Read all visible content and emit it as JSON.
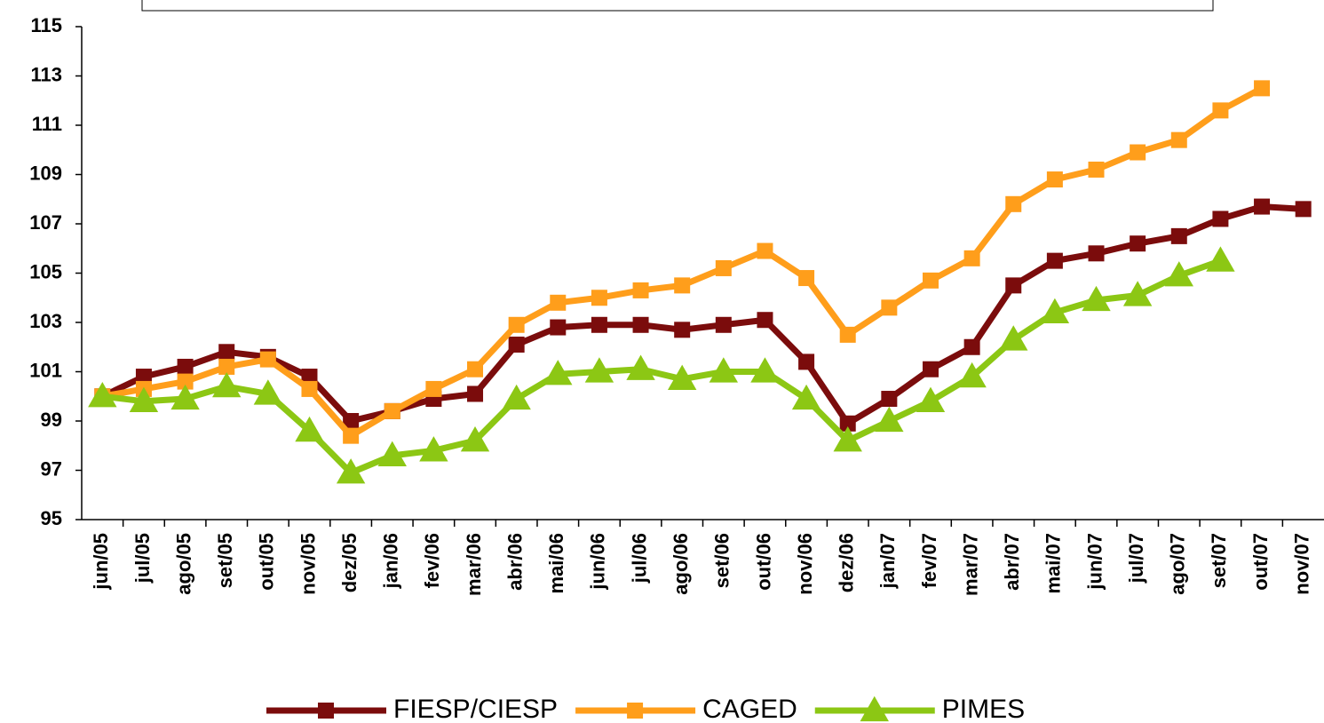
{
  "chart_data": {
    "type": "line",
    "categories": [
      "jun/05",
      "jul/05",
      "ago/05",
      "set/05",
      "out/05",
      "nov/05",
      "dez/05",
      "jan/06",
      "fev/06",
      "mar/06",
      "abr/06",
      "mai/06",
      "jun/06",
      "jul/06",
      "ago/06",
      "set/06",
      "out/06",
      "nov/06",
      "dez/06",
      "jan/07",
      "fev/07",
      "mar/07",
      "abr/07",
      "mai/07",
      "jun/07",
      "jul/07",
      "ago/07",
      "set/07",
      "out/07",
      "nov/07"
    ],
    "series": [
      {
        "name": "FIESP/CIESP",
        "color": "#7b0c0c",
        "marker": "square",
        "values": [
          100.0,
          100.8,
          101.2,
          101.8,
          101.6,
          100.8,
          99.0,
          99.4,
          99.9,
          100.1,
          102.1,
          102.8,
          102.9,
          102.9,
          102.7,
          102.9,
          103.1,
          101.4,
          98.9,
          99.9,
          101.1,
          102.0,
          104.5,
          105.5,
          105.8,
          106.2,
          106.5,
          107.2,
          107.7,
          107.6
        ]
      },
      {
        "name": "CAGED",
        "color": "#ff9e1b",
        "marker": "square",
        "values": [
          100.0,
          100.3,
          100.6,
          101.2,
          101.5,
          100.3,
          98.4,
          99.4,
          100.3,
          101.1,
          102.9,
          103.8,
          104.0,
          104.3,
          104.5,
          105.2,
          105.9,
          104.8,
          102.5,
          103.6,
          104.7,
          105.6,
          107.8,
          108.8,
          109.2,
          109.9,
          110.4,
          111.6,
          112.5,
          null
        ]
      },
      {
        "name": "PIMES",
        "color": "#8cc714",
        "marker": "triangle",
        "values": [
          100.0,
          99.8,
          99.9,
          100.4,
          100.1,
          98.6,
          96.9,
          97.6,
          97.8,
          98.2,
          99.9,
          100.9,
          101.0,
          101.1,
          100.7,
          101.0,
          101.0,
          99.9,
          98.2,
          99.0,
          99.8,
          100.8,
          102.3,
          103.4,
          103.9,
          104.1,
          104.9,
          105.5,
          null,
          null
        ]
      }
    ],
    "ylim": [
      95,
      115
    ],
    "yticks": [
      95,
      97,
      99,
      101,
      103,
      105,
      107,
      109,
      111,
      113,
      115
    ],
    "legend": "bottom"
  }
}
